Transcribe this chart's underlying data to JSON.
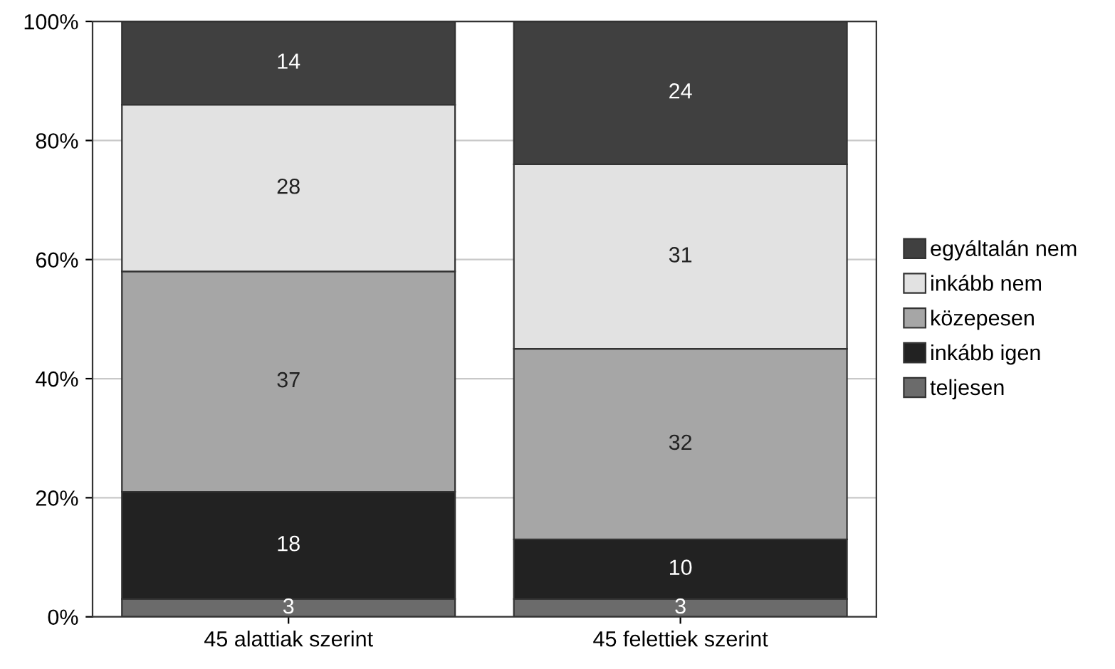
{
  "chart_data": {
    "type": "bar",
    "stacked": true,
    "data_labels": true,
    "legend": "right",
    "grid": "y",
    "categories": [
      "45 alattiak szerint",
      "45 felettiek szerint"
    ],
    "ylim": [
      0,
      100
    ],
    "yticks": [
      {
        "value": 0,
        "label": "0%"
      },
      {
        "value": 20,
        "label": "20%"
      },
      {
        "value": 40,
        "label": "40%"
      },
      {
        "value": 60,
        "label": "60%"
      },
      {
        "value": 80,
        "label": "80%"
      },
      {
        "value": 100,
        "label": "100%"
      }
    ],
    "series": [
      {
        "name": "teljesen",
        "color": "#6b6b6b",
        "values": [
          3,
          3
        ]
      },
      {
        "name": "inkább igen",
        "color": "#222222",
        "values": [
          18,
          10
        ]
      },
      {
        "name": "közepesen",
        "color": "#a6a6a6",
        "values": [
          37,
          32
        ]
      },
      {
        "name": "inkább nem",
        "color": "#e2e2e2",
        "values": [
          28,
          31
        ]
      },
      {
        "name": "egyáltalán nem",
        "color": "#404040",
        "values": [
          14,
          24
        ]
      }
    ]
  }
}
